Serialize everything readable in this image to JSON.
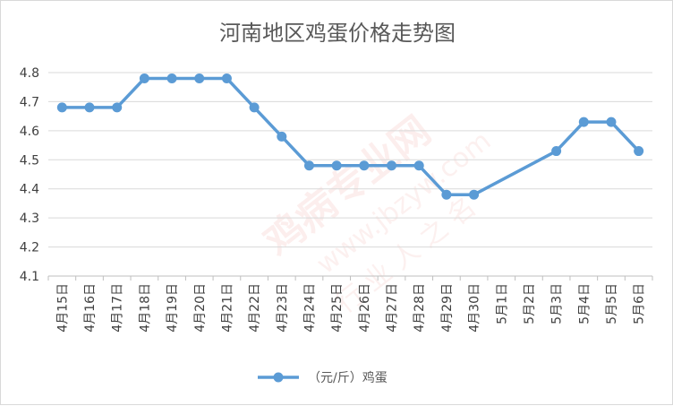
{
  "chart_data": {
    "type": "line",
    "title": "河南地区鸡蛋价格走势图",
    "categories": [
      "4月15日",
      "4月16日",
      "4月17日",
      "4月18日",
      "4月19日",
      "4月20日",
      "4月21日",
      "4月22日",
      "4月23日",
      "4月24日",
      "4月25日",
      "4月26日",
      "4月27日",
      "4月28日",
      "4月29日",
      "4月30日",
      "5月1日",
      "5月2日",
      "5月3日",
      "5月4日",
      "5月5日",
      "5月6日"
    ],
    "series": [
      {
        "name": "（元/斤）鸡蛋",
        "color": "#5b9bd5",
        "values": [
          4.68,
          4.68,
          4.68,
          4.78,
          4.78,
          4.78,
          4.78,
          4.68,
          4.58,
          4.48,
          4.48,
          4.48,
          4.48,
          4.48,
          4.38,
          4.38,
          null,
          null,
          4.53,
          4.63,
          4.63,
          4.53
        ]
      }
    ],
    "xlabel": "",
    "ylabel": "",
    "ylim": [
      4.1,
      4.8
    ],
    "yticks": [
      "4.1",
      "4.2",
      "4.3",
      "4.4",
      "4.5",
      "4.6",
      "4.7",
      "4.8"
    ],
    "grid": true,
    "legend": "bottom"
  },
  "watermark": {
    "text": "鸡病专业网",
    "url": "www.jbzyw.com",
    "slogan": "行 业 人 之 名"
  }
}
